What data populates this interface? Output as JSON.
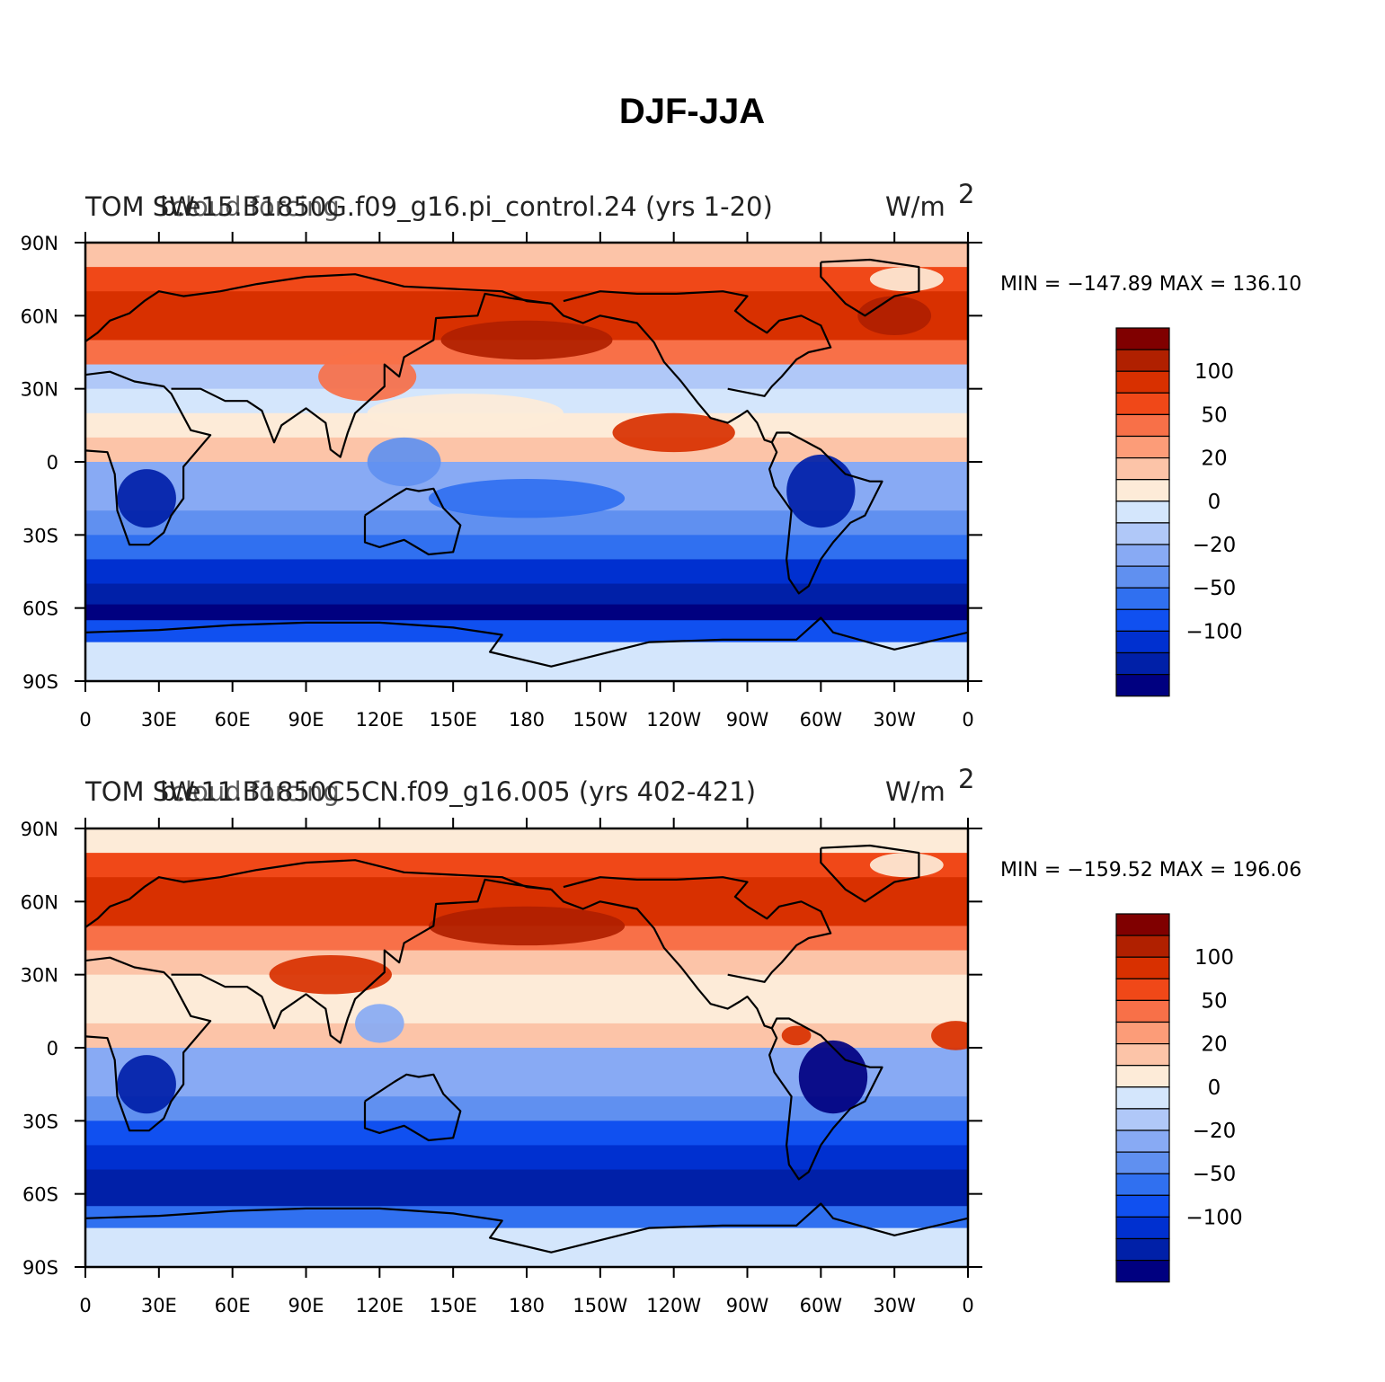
{
  "title": "DJF-JJA",
  "colors": [
    "#000080",
    "#0020a8",
    "#0030d0",
    "#1050f0",
    "#3070f0",
    "#6090f0",
    "#88aaf4",
    "#b0c8f8",
    "#d4e6fc",
    "#fdebd8",
    "#fcc4a8",
    "#fc9c78",
    "#f87048",
    "#f04818",
    "#d83000",
    "#b02000",
    "#800000"
  ],
  "coast": [
    [
      [
        -12,
        36
      ],
      [
        -8,
        44
      ],
      [
        -2,
        48
      ],
      [
        5,
        53
      ],
      [
        10,
        58
      ],
      [
        18,
        61
      ],
      [
        24,
        66
      ],
      [
        30,
        70
      ],
      [
        40,
        68
      ],
      [
        55,
        70
      ],
      [
        70,
        73
      ],
      [
        90,
        76
      ],
      [
        110,
        77
      ],
      [
        130,
        72
      ],
      [
        150,
        71
      ],
      [
        170,
        70
      ],
      [
        180,
        66
      ],
      [
        190,
        65
      ]
    ],
    [
      [
        -17,
        15
      ],
      [
        -17,
        21
      ],
      [
        -10,
        28
      ],
      [
        -6,
        35
      ],
      [
        10,
        37
      ],
      [
        20,
        33
      ],
      [
        32,
        31
      ],
      [
        35,
        28
      ],
      [
        43,
        13
      ],
      [
        51,
        11
      ],
      [
        40,
        -2
      ],
      [
        40,
        -15
      ],
      [
        35,
        -22
      ],
      [
        32,
        -29
      ],
      [
        26,
        -34
      ],
      [
        18,
        -34
      ],
      [
        13,
        -20
      ],
      [
        12,
        -5
      ],
      [
        9,
        4
      ],
      [
        -5,
        5
      ],
      [
        -15,
        10
      ],
      [
        -17,
        15
      ]
    ],
    [
      [
        35,
        30
      ],
      [
        47,
        30
      ],
      [
        57,
        25
      ],
      [
        66,
        25
      ],
      [
        72,
        21
      ],
      [
        77,
        8
      ],
      [
        80,
        15
      ],
      [
        90,
        22
      ],
      [
        98,
        16
      ],
      [
        100,
        5
      ],
      [
        104,
        2
      ],
      [
        107,
        12
      ],
      [
        110,
        20
      ],
      [
        122,
        31
      ],
      [
        122,
        40
      ],
      [
        128,
        35
      ],
      [
        130,
        43
      ],
      [
        142,
        50
      ],
      [
        143,
        59
      ],
      [
        160,
        60
      ],
      [
        163,
        69
      ],
      [
        175,
        67
      ],
      [
        190,
        65
      ]
    ],
    [
      [
        114,
        -22
      ],
      [
        114,
        -33
      ],
      [
        120,
        -35
      ],
      [
        130,
        -32
      ],
      [
        140,
        -38
      ],
      [
        150,
        -37
      ],
      [
        153,
        -26
      ],
      [
        146,
        -19
      ],
      [
        142,
        -11
      ],
      [
        136,
        -12
      ],
      [
        131,
        -11
      ],
      [
        126,
        -14
      ],
      [
        114,
        -22
      ]
    ],
    [
      [
        190,
        65
      ],
      [
        195,
        60
      ],
      [
        203,
        57
      ],
      [
        210,
        60
      ],
      [
        215,
        59
      ],
      [
        225,
        57
      ],
      [
        232,
        49
      ],
      [
        236,
        41
      ],
      [
        243,
        33
      ],
      [
        250,
        24
      ],
      [
        255,
        18
      ],
      [
        262,
        16
      ],
      [
        267,
        19
      ],
      [
        270,
        21
      ],
      [
        274,
        16
      ],
      [
        277,
        9
      ],
      [
        280,
        8
      ],
      [
        282,
        12
      ],
      [
        287,
        12
      ],
      [
        300,
        5
      ],
      [
        310,
        -5
      ],
      [
        320,
        -8
      ],
      [
        325,
        -8
      ],
      [
        318,
        -22
      ],
      [
        312,
        -25
      ],
      [
        305,
        -33
      ],
      [
        300,
        -40
      ],
      [
        295,
        -51
      ],
      [
        291,
        -54
      ],
      [
        287,
        -48
      ],
      [
        286,
        -40
      ],
      [
        288,
        -20
      ],
      [
        281,
        -10
      ],
      [
        279,
        -3
      ],
      [
        282,
        4
      ],
      [
        280,
        8
      ]
    ],
    [
      [
        262,
        30
      ],
      [
        277,
        27
      ],
      [
        280,
        31
      ],
      [
        284,
        35
      ],
      [
        290,
        42
      ],
      [
        295,
        45
      ],
      [
        304,
        47
      ],
      [
        300,
        56
      ],
      [
        292,
        60
      ],
      [
        283,
        58
      ],
      [
        278,
        53
      ],
      [
        270,
        58
      ],
      [
        265,
        62
      ],
      [
        270,
        68
      ],
      [
        260,
        70
      ],
      [
        241,
        69
      ],
      [
        225,
        69
      ],
      [
        210,
        70
      ],
      [
        195,
        66
      ]
    ],
    [
      [
        300,
        82
      ],
      [
        320,
        83
      ],
      [
        340,
        80
      ],
      [
        340,
        70
      ],
      [
        330,
        68
      ],
      [
        318,
        60
      ],
      [
        310,
        65
      ],
      [
        300,
        76
      ],
      [
        300,
        82
      ]
    ],
    [
      [
        0,
        -70
      ],
      [
        30,
        -69
      ],
      [
        60,
        -67
      ],
      [
        90,
        -66
      ],
      [
        120,
        -66
      ],
      [
        150,
        -68
      ],
      [
        170,
        -71
      ],
      [
        165,
        -78
      ],
      [
        190,
        -84
      ],
      [
        210,
        -79
      ],
      [
        230,
        -74
      ],
      [
        260,
        -73
      ],
      [
        290,
        -73
      ],
      [
        300,
        -64
      ],
      [
        305,
        -70
      ],
      [
        330,
        -77
      ],
      [
        360,
        -70
      ]
    ]
  ],
  "panels": [
    {
      "name": "top",
      "title_left": "TOM SW",
      "title_center": "b.e15.B1850G.f09_g16.pi_control.24 (yrs 1-20)",
      "title_overlay": "cloud forcing",
      "title_right": "W/m",
      "title_right_exp": "2",
      "min_max": "MIN = −147.89  MAX = 136.10",
      "latitude_bands": [
        {
          "lat": 85,
          "value": 15
        },
        {
          "lat": 75,
          "value": 70
        },
        {
          "lat": 65,
          "value": 85
        },
        {
          "lat": 55,
          "value": 75
        },
        {
          "lat": 45,
          "value": 40
        },
        {
          "lat": 35,
          "value": -10
        },
        {
          "lat": 25,
          "value": -5
        },
        {
          "lat": 15,
          "value": 10
        },
        {
          "lat": 5,
          "value": 20
        },
        {
          "lat": -5,
          "value": -30
        },
        {
          "lat": -15,
          "value": -20
        },
        {
          "lat": -25,
          "value": -35
        },
        {
          "lat": -35,
          "value": -60
        },
        {
          "lat": -45,
          "value": -90
        },
        {
          "lat": -55,
          "value": -120
        },
        {
          "lat": -62,
          "value": -140
        },
        {
          "lat": -68,
          "value": -80
        },
        {
          "lat": -80,
          "value": -5
        }
      ],
      "blobs": [
        {
          "lon": 180,
          "lat": 50,
          "rlon": 35,
          "rlat": 8,
          "value": 110
        },
        {
          "lon": 330,
          "lat": 60,
          "rlon": 15,
          "rlat": 8,
          "value": 110
        },
        {
          "lon": 335,
          "lat": 75,
          "rlon": 15,
          "rlat": 5,
          "value": 5
        },
        {
          "lon": 115,
          "lat": 35,
          "rlon": 20,
          "rlat": 10,
          "value": 40
        },
        {
          "lon": 25,
          "lat": -15,
          "rlon": 12,
          "rlat": 12,
          "value": -110
        },
        {
          "lon": 300,
          "lat": -12,
          "rlon": 14,
          "rlat": 15,
          "value": -110
        },
        {
          "lon": 155,
          "lat": 20,
          "rlon": 40,
          "rlat": 8,
          "value": 10
        },
        {
          "lon": 240,
          "lat": 12,
          "rlon": 25,
          "rlat": 8,
          "value": 80
        },
        {
          "lon": 130,
          "lat": 0,
          "rlon": 15,
          "rlat": 10,
          "value": -40
        },
        {
          "lon": 180,
          "lat": -15,
          "rlon": 40,
          "rlat": 8,
          "value": -50
        }
      ]
    },
    {
      "name": "bottom",
      "title_left": "TOM SW",
      "title_center": "b.e11.B1850C5CN.f09_g16.005 (yrs 402-421)",
      "title_overlay": "cloud forcing",
      "title_right": "W/m",
      "title_right_exp": "2",
      "min_max": "MIN = −159.52  MAX = 196.06",
      "latitude_bands": [
        {
          "lat": 85,
          "value": 8
        },
        {
          "lat": 75,
          "value": 70
        },
        {
          "lat": 65,
          "value": 80
        },
        {
          "lat": 55,
          "value": 75
        },
        {
          "lat": 45,
          "value": 50
        },
        {
          "lat": 35,
          "value": 20
        },
        {
          "lat": 25,
          "value": 5
        },
        {
          "lat": 15,
          "value": 10
        },
        {
          "lat": 5,
          "value": 20
        },
        {
          "lat": -5,
          "value": -30
        },
        {
          "lat": -15,
          "value": -25
        },
        {
          "lat": -25,
          "value": -40
        },
        {
          "lat": -35,
          "value": -70
        },
        {
          "lat": -45,
          "value": -95
        },
        {
          "lat": -55,
          "value": -110
        },
        {
          "lat": -62,
          "value": -120
        },
        {
          "lat": -68,
          "value": -60
        },
        {
          "lat": -80,
          "value": -5
        }
      ],
      "blobs": [
        {
          "lon": 180,
          "lat": 50,
          "rlon": 40,
          "rlat": 8,
          "value": 100
        },
        {
          "lon": 335,
          "lat": 75,
          "rlon": 15,
          "rlat": 5,
          "value": 5
        },
        {
          "lon": 25,
          "lat": -15,
          "rlon": 12,
          "rlat": 12,
          "value": -120
        },
        {
          "lon": 305,
          "lat": -12,
          "rlon": 14,
          "rlat": 15,
          "value": -130
        },
        {
          "lon": 290,
          "lat": 5,
          "rlon": 6,
          "rlat": 4,
          "value": 90
        },
        {
          "lon": 100,
          "lat": 30,
          "rlon": 25,
          "rlat": 8,
          "value": 80
        },
        {
          "lon": 355,
          "lat": 5,
          "rlon": 10,
          "rlat": 6,
          "value": 90
        },
        {
          "lon": 120,
          "lat": 10,
          "rlon": 10,
          "rlat": 8,
          "value": -20
        }
      ]
    }
  ],
  "x_ticks": [
    "0",
    "30E",
    "60E",
    "90E",
    "120E",
    "150E",
    "180",
    "150W",
    "120W",
    "90W",
    "60W",
    "30W",
    "0"
  ],
  "y_ticks": [
    "90N",
    "60N",
    "30N",
    "0",
    "30S",
    "60S",
    "90S"
  ],
  "colorbar_labels": [
    "100",
    "50",
    "20",
    "0",
    "−20",
    "−50",
    "−100"
  ]
}
